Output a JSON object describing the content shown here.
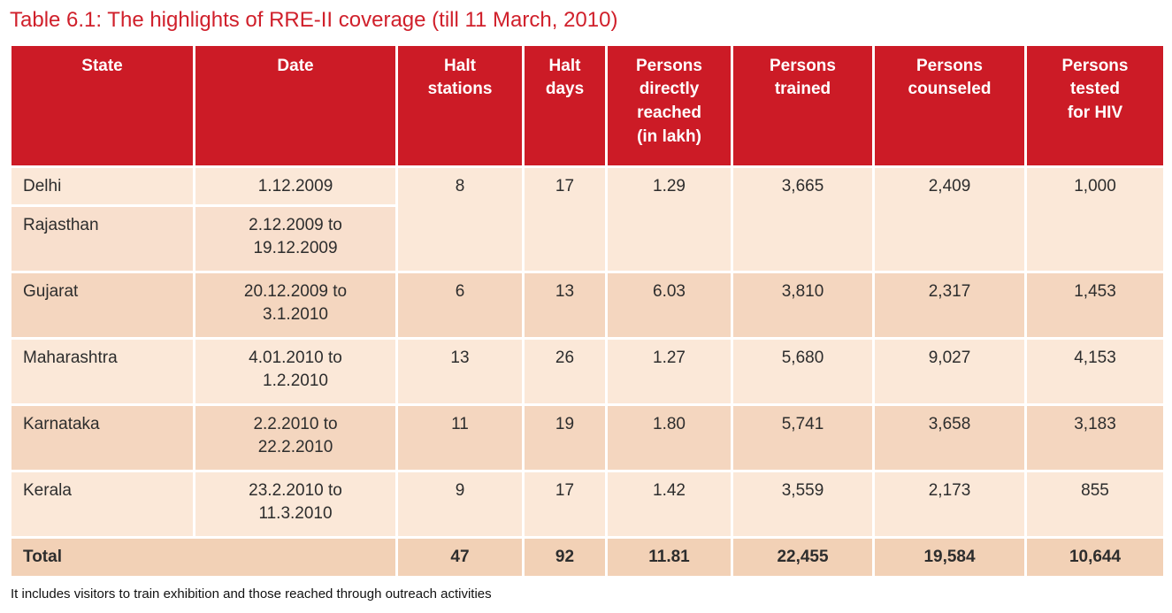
{
  "page": {
    "title": "Table 6.1: The highlights of RRE-II coverage (till 11 March, 2010)",
    "footnote": "It includes visitors to train exhibition and those reached through outreach activities"
  },
  "colors": {
    "title_red": "#d0202b",
    "header_bg": "#cc1b26",
    "header_text": "#ffffff",
    "row_light": "#fbe8d8",
    "row_mid": "#f8dfcd",
    "row_dark": "#f4d6bf",
    "total_bg": "#f2d1b6",
    "body_text": "#2d2d2d"
  },
  "table": {
    "columns": [
      "State",
      "Date",
      "Halt\nstations",
      "Halt\ndays",
      "Persons\ndirectly\nreached\n(in lakh)",
      "Persons\ntrained",
      "Persons\ncounseled",
      "Persons\ntested\nfor HIV"
    ],
    "rows": [
      {
        "state": "Delhi",
        "date": "1.12.2009",
        "halt_stations": "8",
        "halt_days": "17",
        "reached": "1.29",
        "trained": "3,665",
        "counseled": "2,409",
        "tested": "1,000"
      },
      {
        "state": "Rajasthan",
        "date": "2.12.2009 to\n19.12.2009"
      },
      {
        "state": "Gujarat",
        "date": "20.12.2009 to\n3.1.2010",
        "halt_stations": "6",
        "halt_days": "13",
        "reached": "6.03",
        "trained": "3,810",
        "counseled": "2,317",
        "tested": "1,453"
      },
      {
        "state": "Maharashtra",
        "date": "4.01.2010 to\n1.2.2010",
        "halt_stations": "13",
        "halt_days": "26",
        "reached": "1.27",
        "trained": "5,680",
        "counseled": "9,027",
        "tested": "4,153"
      },
      {
        "state": "Karnataka",
        "date": "2.2.2010 to\n22.2.2010",
        "halt_stations": "11",
        "halt_days": "19",
        "reached": "1.80",
        "trained": "5,741",
        "counseled": "3,658",
        "tested": "3,183"
      },
      {
        "state": "Kerala",
        "date": "23.2.2010 to\n11.3.2010",
        "halt_stations": "9",
        "halt_days": "17",
        "reached": "1.42",
        "trained": "3,559",
        "counseled": "2,173",
        "tested": "855"
      }
    ],
    "total": {
      "label": "Total",
      "halt_stations": "47",
      "halt_days": "92",
      "reached": "11.81",
      "trained": "22,455",
      "counseled": "19,584",
      "tested": "10,644"
    }
  }
}
